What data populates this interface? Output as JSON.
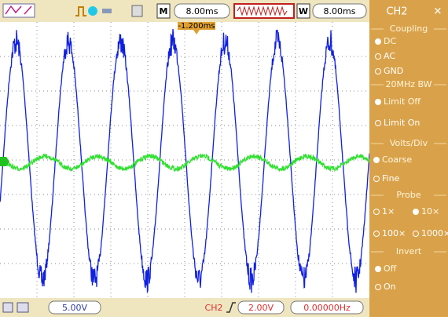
{
  "toolbar": {
    "timebase_label": "M",
    "timebase": "8.00ms",
    "window_label": "W",
    "window": "8.00ms"
  },
  "trigger_marker": "-1.200ms",
  "menu": {
    "title": "CH2",
    "sections": [
      {
        "title": "Coupling",
        "options": [
          "DC",
          "AC",
          "GND"
        ]
      },
      {
        "title": "20MHz BW",
        "options": [
          "Limit Off",
          "Limit On"
        ]
      },
      {
        "title": "Volts/Div",
        "options": [
          "Coarse",
          "Fine"
        ]
      },
      {
        "title": "Probe",
        "options": [
          "1×",
          "10×",
          "100×",
          "1000×"
        ]
      },
      {
        "title": "Invert",
        "options": [
          "Off",
          "On"
        ]
      }
    ]
  },
  "status": {
    "ch1_scale": "5.00V",
    "ch2_label": "CH2",
    "ch2_scale": "2.00V",
    "frequency": "0.00000Hz"
  }
}
